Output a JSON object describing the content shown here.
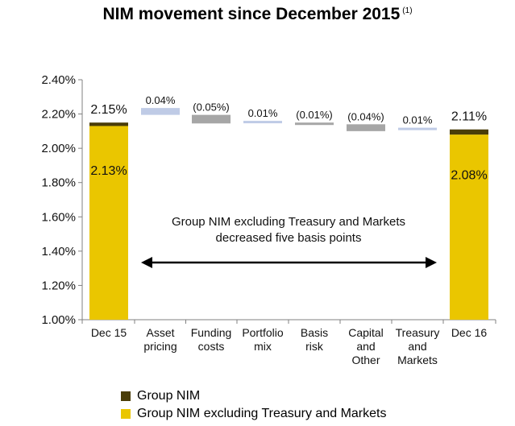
{
  "title": "NIM movement since December 2015",
  "title_note": "(1)",
  "colors": {
    "group_nim": "#4a3d08",
    "excl_tm": "#eac600",
    "increase": "#bfcbe6",
    "decrease": "#a6a6a6",
    "axis": "#808080"
  },
  "chart_data": {
    "type": "bar",
    "subtype": "waterfall",
    "title": "NIM movement since December 2015",
    "xlabel": "",
    "ylabel": "",
    "ylim": [
      1.0,
      2.4
    ],
    "yticks": [
      1.0,
      1.2,
      1.4,
      1.6,
      1.8,
      2.0,
      2.2,
      2.4
    ],
    "ytick_labels": [
      "1.00%",
      "1.20%",
      "1.40%",
      "1.60%",
      "1.80%",
      "2.00%",
      "2.20%",
      "2.40%"
    ],
    "categories": [
      [
        "Dec 15"
      ],
      [
        "Asset",
        "pricing"
      ],
      [
        "Funding",
        "costs"
      ],
      [
        "Portfolio",
        "mix"
      ],
      [
        "Basis",
        "risk"
      ],
      [
        "Capital",
        "and",
        "Other"
      ],
      [
        "Treasury",
        "and",
        "Markets"
      ],
      [
        "Dec 16"
      ]
    ],
    "totals": [
      {
        "index": 0,
        "group_nim": 2.15,
        "excl_tm": 2.13,
        "group_label": "2.15%",
        "excl_label": "2.13%"
      },
      {
        "index": 7,
        "group_nim": 2.11,
        "excl_tm": 2.08,
        "group_label": "2.11%",
        "excl_label": "2.08%"
      }
    ],
    "steps": [
      {
        "index": 1,
        "value": 0.04,
        "label": "0.04%",
        "y_top": 2.235
      },
      {
        "index": 2,
        "value": -0.05,
        "label": "(0.05%)",
        "y_top": 2.195
      },
      {
        "index": 3,
        "value": 0.01,
        "label": "0.01%",
        "y_top": 2.16
      },
      {
        "index": 4,
        "value": -0.01,
        "label": "(0.01%)",
        "y_top": 2.15
      },
      {
        "index": 5,
        "value": -0.04,
        "label": "(0.04%)",
        "y_top": 2.14
      },
      {
        "index": 6,
        "value": 0.01,
        "label": "0.01%",
        "y_top": 2.12
      }
    ],
    "legend": [
      {
        "key": "group_nim",
        "label": "Group NIM"
      },
      {
        "key": "excl_tm",
        "label": "Group NIM excluding Treasury and Markets"
      }
    ],
    "legend_position": "bottom-left",
    "annotation": {
      "lines": [
        "Group NIM excluding Treasury and Markets",
        "decreased five basis points"
      ]
    }
  }
}
